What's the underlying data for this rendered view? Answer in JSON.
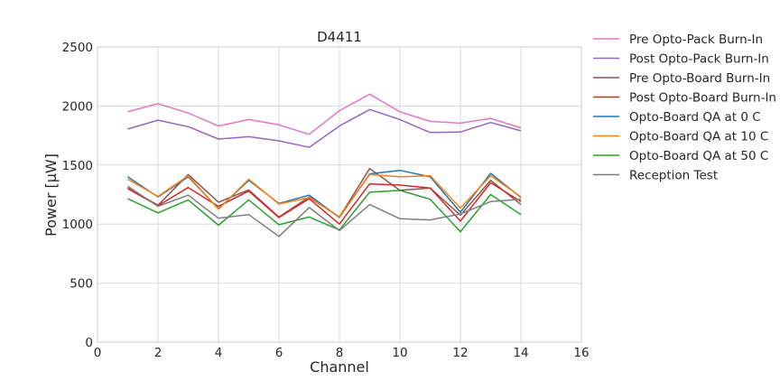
{
  "chart_data": {
    "type": "line",
    "title": "D4411",
    "xlabel": "Channel",
    "ylabel": "Power [μW]",
    "xlim": [
      0,
      16
    ],
    "ylim": [
      0,
      2500
    ],
    "xticks": [
      0,
      2,
      4,
      6,
      8,
      10,
      12,
      14,
      16
    ],
    "yticks": [
      0,
      500,
      1000,
      1500,
      2000,
      2500
    ],
    "grid": true,
    "legend_position": "outside-right",
    "x": [
      1,
      2,
      3,
      4,
      5,
      6,
      7,
      8,
      9,
      10,
      11,
      12,
      13,
      14
    ],
    "series": [
      {
        "name": "Pre Opto-Pack Burn-In",
        "color": "#e377c2",
        "values": [
          1950,
          2020,
          1940,
          1830,
          1885,
          1840,
          1760,
          1960,
          2100,
          1950,
          1870,
          1855,
          1895,
          1815
        ]
      },
      {
        "name": "Post Opto-Pack Burn-In",
        "color": "#9467bd",
        "values": [
          1805,
          1880,
          1825,
          1720,
          1740,
          1705,
          1650,
          1830,
          1970,
          1885,
          1775,
          1780,
          1860,
          1790
        ]
      },
      {
        "name": "Pre Opto-Board Burn-In",
        "color": "#8c564b",
        "values": [
          1305,
          1160,
          1420,
          1185,
          1290,
          1060,
          1230,
          1060,
          1470,
          1285,
          1305,
          1075,
          1370,
          1165
        ]
      },
      {
        "name": "Post Opto-Board Burn-In",
        "color": "#d62728",
        "values": [
          1300,
          1155,
          1310,
          1150,
          1280,
          1055,
          1215,
          1000,
          1340,
          1330,
          1305,
          1025,
          1350,
          1190
        ]
      },
      {
        "name": "Opto-Board QA at 0 C",
        "color": "#1f77b4",
        "values": [
          1400,
          1230,
          1400,
          1130,
          1370,
          1175,
          1245,
          1055,
          1425,
          1455,
          1400,
          1100,
          1430,
          1225
        ]
      },
      {
        "name": "Opto-Board QA at 10 C",
        "color": "#ff7f0e",
        "values": [
          1380,
          1235,
          1410,
          1125,
          1380,
          1170,
          1225,
          1060,
          1420,
          1400,
          1410,
          1135,
          1410,
          1230
        ]
      },
      {
        "name": "Opto-Board QA at 50 C",
        "color": "#2ca02c",
        "values": [
          1215,
          1095,
          1205,
          990,
          1205,
          995,
          1060,
          950,
          1270,
          1285,
          1210,
          935,
          1250,
          1080
        ]
      },
      {
        "name": "Reception Test",
        "color": "#7f7f7f",
        "values": [
          1320,
          1150,
          1245,
          1050,
          1080,
          895,
          1140,
          945,
          1165,
          1045,
          1035,
          1085,
          1190,
          1210
        ]
      }
    ]
  }
}
